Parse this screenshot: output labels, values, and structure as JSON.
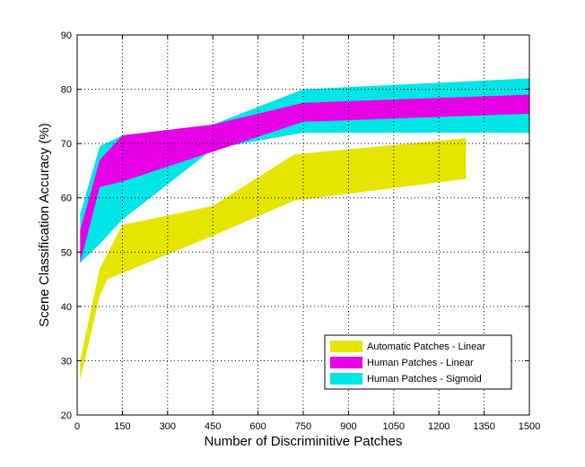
{
  "chart_data": {
    "type": "area",
    "xlabel": "Number of Discriminitive Patches",
    "ylabel": "Scene Classification Accuracy (%)",
    "xlim": [
      0,
      1500
    ],
    "ylim": [
      20,
      90
    ],
    "xticks": [
      0,
      150,
      300,
      450,
      600,
      750,
      900,
      1050,
      1200,
      1350,
      1500
    ],
    "xtick_labels": [
      "0",
      "150",
      "300",
      "450",
      "600",
      "750",
      "900",
      "1050",
      "1200",
      "1350",
      "1500"
    ],
    "yticks": [
      20,
      30,
      40,
      50,
      60,
      70,
      80,
      90
    ],
    "ytick_labels": [
      "20",
      "30",
      "40",
      "50",
      "60",
      "70",
      "80",
      "90"
    ],
    "grid": true,
    "legend_position": "bottom-right",
    "series": [
      {
        "name": "Human Patches - Sigmoid",
        "color": "#00e5e5",
        "upper": [
          [
            10,
            57.0
          ],
          [
            75,
            69.5
          ],
          [
            150,
            71.5
          ],
          [
            450,
            73.5
          ],
          [
            750,
            80.0
          ],
          [
            1500,
            82.0
          ]
        ],
        "lower": [
          [
            10,
            48.0
          ],
          [
            75,
            51.5
          ],
          [
            150,
            56.0
          ],
          [
            450,
            69.0
          ],
          [
            750,
            72.0
          ],
          [
            1500,
            72.0
          ]
        ]
      },
      {
        "name": "Human Patches - Linear",
        "color": "#e500e5",
        "upper": [
          [
            10,
            54.0
          ],
          [
            75,
            67.0
          ],
          [
            150,
            71.5
          ],
          [
            450,
            73.5
          ],
          [
            750,
            77.5
          ],
          [
            1500,
            79.0
          ]
        ],
        "lower": [
          [
            10,
            48.0
          ],
          [
            75,
            62.0
          ],
          [
            150,
            63.0
          ],
          [
            450,
            68.5
          ],
          [
            750,
            74.0
          ],
          [
            1500,
            75.5
          ]
        ]
      },
      {
        "name": "Automatic Patches - Linear",
        "color": "#e5e500",
        "upper": [
          [
            10,
            30.0
          ],
          [
            75,
            47.0
          ],
          [
            150,
            55.0
          ],
          [
            450,
            58.5
          ],
          [
            720,
            68.0
          ],
          [
            1290,
            71.0
          ]
        ],
        "lower": [
          [
            10,
            26.5
          ],
          [
            75,
            42.0
          ],
          [
            100,
            45.0
          ],
          [
            450,
            53.0
          ],
          [
            720,
            59.5
          ],
          [
            1290,
            63.5
          ]
        ]
      }
    ],
    "legend_order": [
      "Automatic Patches - Linear",
      "Human Patches - Linear",
      "Human Patches - Sigmoid"
    ]
  }
}
